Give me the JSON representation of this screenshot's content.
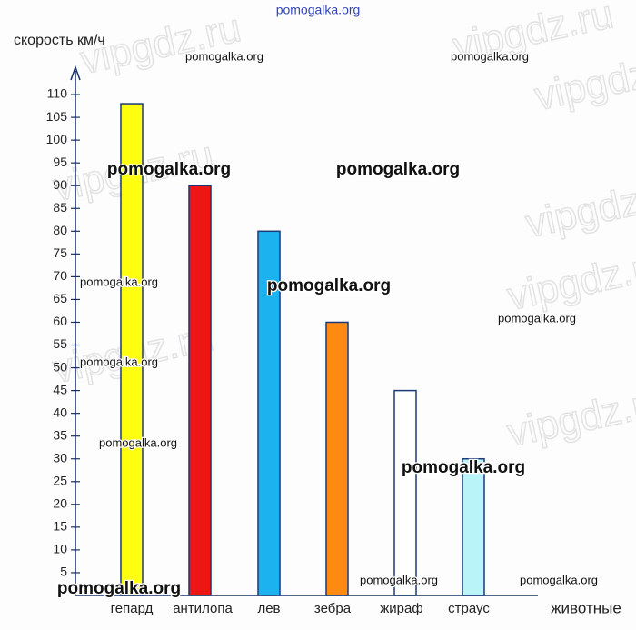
{
  "chart_data": {
    "type": "bar",
    "y_axis_label": "скорость км/ч",
    "x_axis_label": "животные",
    "categories": [
      "гепард",
      "антилопа",
      "лев",
      "зебра",
      "жираф",
      "страус"
    ],
    "values": [
      108,
      90,
      80,
      60,
      45,
      30
    ],
    "colors": [
      "#ffff10",
      "#ee1515",
      "#1cb2f0",
      "#ff8a12",
      "#ffffff",
      "#b8f4f8"
    ],
    "ylim": [
      0,
      115
    ],
    "yticks": [
      5,
      10,
      15,
      20,
      25,
      30,
      35,
      40,
      45,
      50,
      55,
      60,
      65,
      70,
      75,
      80,
      85,
      90,
      95,
      100,
      105,
      110
    ],
    "grid": false
  },
  "watermarks": [
    "pomogalka.org",
    "pomogalka.org",
    "pomogalka.org",
    "pomogalka.org",
    "pomogalka.org",
    "pomogalka.org",
    "pomogalka.org",
    "pomogalka.org",
    "pomogalka.org",
    "pomogalka.org",
    "pomogalka.org",
    "pomogalka.org",
    "pomogalka.org",
    "pomogalka.org"
  ],
  "faint_watermarks": [
    "vipgdz.ru",
    "vipgdz.ru",
    "vipgdz.ru",
    "vipgdz.ru",
    "vipgdz.ru",
    "vipgdz.ru",
    "vipgdz.ru",
    "vipgdz.ru"
  ]
}
